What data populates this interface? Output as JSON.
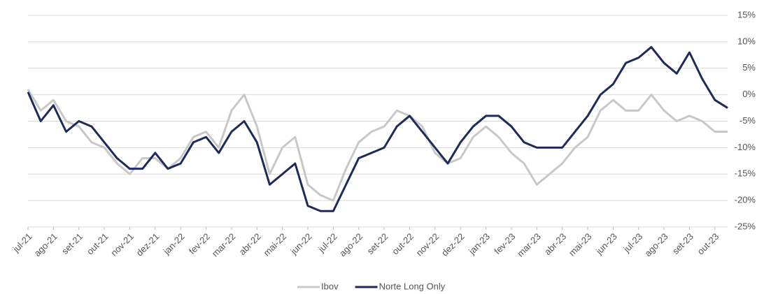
{
  "chart_data": {
    "type": "line",
    "x": [
      0,
      0.5,
      1,
      1.5,
      2,
      2.5,
      3,
      3.5,
      4,
      4.5,
      5,
      5.5,
      6,
      6.5,
      7,
      7.5,
      8,
      8.5,
      9,
      9.5,
      10,
      10.5,
      11,
      11.5,
      12,
      12.5,
      13,
      13.5,
      14,
      14.5,
      15,
      15.5,
      16,
      16.5,
      17,
      17.5,
      18,
      18.5,
      19,
      19.5,
      20,
      20.5,
      21,
      21.5,
      22,
      22.5,
      23,
      23.5,
      24,
      24.5,
      25,
      25.5,
      26,
      26.5,
      27,
      27.5
    ],
    "series": [
      {
        "name": "Ibov",
        "color": "#c8c8c8",
        "values": [
          1,
          -3,
          -1,
          -5,
          -6,
          -9,
          -10,
          -13,
          -15,
          -12,
          -12,
          -14,
          -12,
          -8,
          -7,
          -10,
          -3,
          0,
          -6,
          -15,
          -10,
          -8,
          -17,
          -19,
          -20,
          -14,
          -9,
          -7,
          -6,
          -3,
          -4,
          -6,
          -11,
          -13,
          -12,
          -8,
          -6,
          -8,
          -11,
          -13,
          -17,
          -15,
          -13,
          -10,
          -8,
          -3,
          -1,
          -3,
          -3,
          0,
          -3,
          -5,
          -4,
          -5,
          -7,
          -7
        ]
      },
      {
        "name": "Norte Long Only",
        "color": "#1f2a5c",
        "values": [
          0.5,
          -5,
          -2,
          -7,
          -5,
          -6,
          -9,
          -12,
          -14,
          -14,
          -11,
          -14,
          -13,
          -9,
          -8,
          -11,
          -7,
          -5,
          -9,
          -17,
          -15,
          -13,
          -21,
          -22,
          -22,
          -17,
          -12,
          -11,
          -10,
          -6,
          -4,
          -7,
          -10,
          -13,
          -9,
          -6,
          -4,
          -4,
          -6,
          -9,
          -10,
          -10,
          -10,
          -7,
          -4,
          0,
          2,
          6,
          7,
          9,
          6,
          4,
          8,
          3,
          -1,
          -2.5
        ]
      }
    ],
    "xlim": [
      0,
      27.5
    ],
    "xticks": [
      {
        "value": 0,
        "label": "jul-21"
      },
      {
        "value": 1,
        "label": "ago-21"
      },
      {
        "value": 2,
        "label": "set-21"
      },
      {
        "value": 3,
        "label": "out-21"
      },
      {
        "value": 4,
        "label": "nov-21"
      },
      {
        "value": 5,
        "label": "dez-21"
      },
      {
        "value": 6,
        "label": "jan-22"
      },
      {
        "value": 7,
        "label": "fev-22"
      },
      {
        "value": 8,
        "label": "mar-22"
      },
      {
        "value": 9,
        "label": "abr-22"
      },
      {
        "value": 10,
        "label": "mai-22"
      },
      {
        "value": 11,
        "label": "jun-22"
      },
      {
        "value": 12,
        "label": "jul-22"
      },
      {
        "value": 13,
        "label": "ago-22"
      },
      {
        "value": 14,
        "label": "set-22"
      },
      {
        "value": 15,
        "label": "out-22"
      },
      {
        "value": 16,
        "label": "nov-22"
      },
      {
        "value": 17,
        "label": "dez-22"
      },
      {
        "value": 18,
        "label": "jan-23"
      },
      {
        "value": 19,
        "label": "fev-23"
      },
      {
        "value": 20,
        "label": "mar-23"
      },
      {
        "value": 21,
        "label": "abr-23"
      },
      {
        "value": 22,
        "label": "mai-23"
      },
      {
        "value": 23,
        "label": "jun-23"
      },
      {
        "value": 24,
        "label": "jul-23"
      },
      {
        "value": 25,
        "label": "ago-23"
      },
      {
        "value": 26,
        "label": "set-23"
      },
      {
        "value": 27,
        "label": "out-23"
      }
    ],
    "ylim": [
      -25,
      15
    ],
    "yticks": [
      {
        "value": 15,
        "label": "15%"
      },
      {
        "value": 10,
        "label": "10%"
      },
      {
        "value": 5,
        "label": "5%"
      },
      {
        "value": 0,
        "label": "0%"
      },
      {
        "value": -5,
        "label": "-5%"
      },
      {
        "value": -10,
        "label": "-10%"
      },
      {
        "value": -15,
        "label": "-15%"
      },
      {
        "value": -20,
        "label": "-20%"
      },
      {
        "value": -25,
        "label": "-25%"
      }
    ],
    "grid": true,
    "legend": "bottom"
  }
}
